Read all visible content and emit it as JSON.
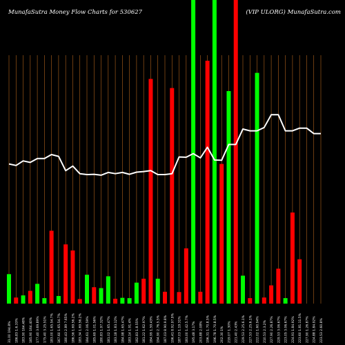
{
  "header": {
    "title_left": "MunafaSutra  Money Flow  Charts for 530627",
    "title_right": "(VIP                         ULORG) MunafaSutra.com"
  },
  "chart_data": {
    "type": "bar",
    "background": "#000000",
    "colors": {
      "up": "#00ff00",
      "down": "#ff0000",
      "gridline": "#b5651d",
      "line": "#ffffff"
    },
    "ylim": [
      0,
      100
    ],
    "categories": [
      "31.00 194.8%",
      "186.83 1.6.33%",
      "183.90 164.48%",
      "185.90 164.40%",
      "177.40 3.69.89%",
      "175.40 3.25.51%",
      "183.00 1.65.54.7%",
      "167.60 1.65.54.7%",
      "180.43 2.89 7.65%",
      "186.56 1.69.56.2%",
      "183.34 1.69.56.2%",
      "184.61 2.06.59%",
      "185.69 1.01.56%",
      "180.83 1.97.32%",
      "181.02 1.65.47%",
      "183.18 1.83.12%",
      "184.98 1.65.47%",
      "183.14 1.91.4%",
      "182.83 1.8.55%",
      "181.22 1.62.97%",
      "184.99 1.59.43%",
      "194.90 2.76.5.5%",
      "187.03 8.90.9.8%",
      "196.41 8.92.97.9%",
      "187.03 1.19.31%",
      "183.00 1.42.5.7%",
      "195.48 3.17%",
      "203.88 2.08%",
      "196.31 1.70.8.5%",
      "196.78 1.70.8.5%",
      "202.30 1%",
      "219.07 1.30%",
      "221.40 2.43%",
      "229.53 2.25.6.1%",
      "227.53 2.25.6.1%",
      "222.02 1.60.94%",
      "210.53 2.3.2%",
      "227.90 2.26.87%",
      "229.53 3.06.67%",
      "223.05 3.06.67%",
      "224.91 1.84.92%",
      "223.60 1.81.11.5%",
      "227.90 1.26.87%",
      "224.88 1.84.92%",
      "223.53 2.60.8%"
    ],
    "series": [
      {
        "direction": [
          "up",
          "down",
          "up",
          "down",
          "up",
          "up",
          "down",
          "up",
          "down",
          "down",
          "down",
          "up",
          "down",
          "up",
          "up",
          "down",
          "up",
          "up",
          "up",
          "down",
          "down",
          "up",
          "down",
          "down",
          "down",
          "down",
          "up",
          "down",
          "down",
          "up",
          "down",
          "up",
          "down",
          "up",
          "down",
          "up",
          "down",
          "down",
          "down",
          "up",
          "down",
          "down",
          "down",
          "down",
          "down"
        ],
        "values": [
          9.7,
          2.0,
          2.7,
          4.2,
          6.5,
          1.8,
          24.0,
          2.5,
          19.5,
          17.5,
          1.5,
          9.5,
          5.4,
          5.1,
          9.0,
          1.6,
          1.9,
          1.8,
          6.9,
          8.2,
          74.0,
          8.2,
          3.9,
          71.0,
          3.8,
          18.2,
          100,
          3.9,
          80.0,
          100,
          46.0,
          70.0,
          100,
          9.2,
          1.8,
          76.0,
          2.0,
          6.0,
          11.5,
          1.8,
          30.0,
          14.6,
          0,
          0,
          0
        ]
      },
      {
        "name": "",
        "type": "line",
        "values": [
          46,
          45.5,
          47,
          46.5,
          47.8,
          47.8,
          49.1,
          48.5,
          43.8,
          45.3,
          42.8,
          42.5,
          42.6,
          42.3,
          43.2,
          42.8,
          43.2,
          42.6,
          43.3,
          43.5,
          43.8,
          42.5,
          42.5,
          42.8,
          48.3,
          48.2,
          49.4,
          48.0,
          51.5,
          47.3,
          47.2,
          52.4,
          52.4,
          57.5,
          56.9,
          56.9,
          58.0,
          62.2,
          62.2,
          56.9,
          56.9,
          57.8,
          57.8,
          56.0,
          56.0
        ]
      }
    ]
  }
}
